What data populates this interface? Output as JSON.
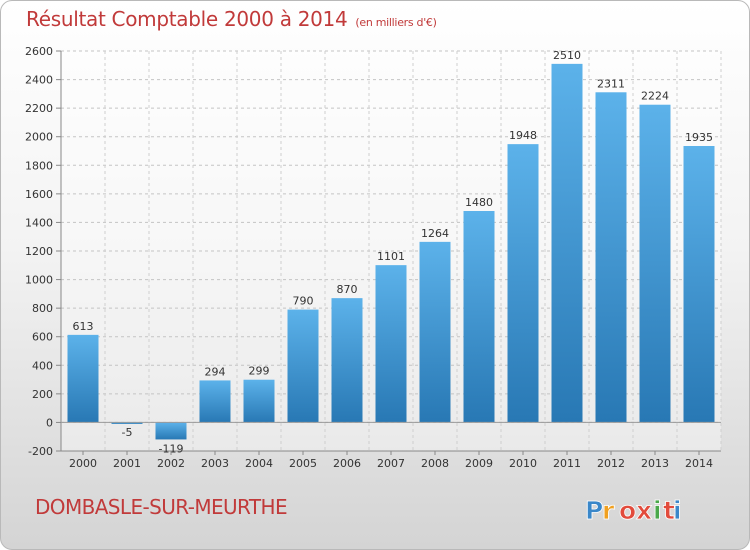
{
  "title": "Résultat Comptable 2000 à 2014",
  "subtitle": "(en milliers d'€)",
  "city": "DOMBASLE-SUR-MEURTHE",
  "brand": [
    "P",
    "r",
    "o",
    "x",
    "i",
    "t",
    "i"
  ],
  "brand_colors": [
    "#3a87c9",
    "#f0a020",
    "#e24b3c",
    "#e24b3c",
    "#4aa84a",
    "#e24b3c",
    "#3a87c9"
  ],
  "colors": {
    "accent": "#c13a3a",
    "bar_top": "#5cb2ea",
    "bar_bottom": "#2878b4"
  },
  "chart_data": {
    "type": "bar",
    "title": "Résultat Comptable 2000 à 2014",
    "categories": [
      "2000",
      "2001",
      "2002",
      "2003",
      "2004",
      "2005",
      "2006",
      "2007",
      "2008",
      "2009",
      "2010",
      "2011",
      "2012",
      "2013",
      "2014"
    ],
    "values": [
      613,
      -5,
      -119,
      294,
      299,
      790,
      870,
      1101,
      1264,
      1480,
      1948,
      2510,
      2311,
      2224,
      1935
    ],
    "data_labels": [
      "613",
      "-5",
      "-119",
      "294",
      "299",
      "790",
      "870",
      "1101",
      "1264",
      "1480",
      "1948",
      "2510",
      "2311",
      "2224",
      "1935"
    ],
    "ylim": [
      -200,
      2600
    ],
    "yticks": [
      -200,
      0,
      200,
      400,
      600,
      800,
      1000,
      1200,
      1400,
      1600,
      1800,
      2000,
      2200,
      2400,
      2600
    ],
    "grid": true
  }
}
